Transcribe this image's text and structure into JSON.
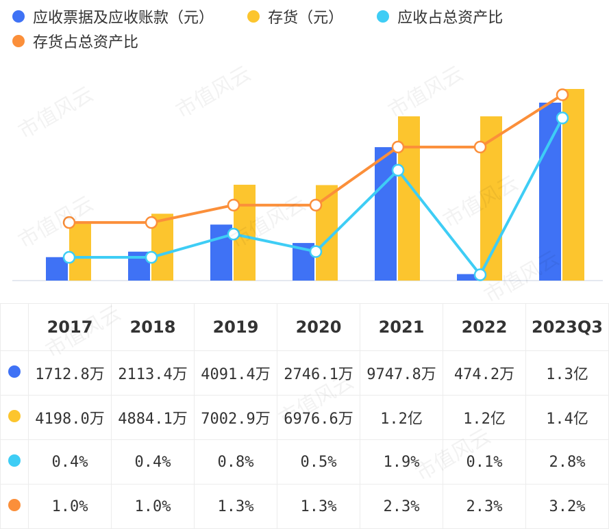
{
  "colors": {
    "receivable": "#3f72f5",
    "inventory": "#fcc52e",
    "receivable_ratio": "#3ecdf5",
    "inventory_ratio": "#fb8f3a"
  },
  "watermark": "市值风云",
  "chart_data": {
    "type": "bar+line",
    "categories": [
      "2017",
      "2018",
      "2019",
      "2020",
      "2021",
      "2022",
      "2023Q3"
    ],
    "series": [
      {
        "name": "应收票据及应收账款（元）",
        "kind": "bar",
        "color": "#3f72f5",
        "values": [
          17128000,
          21134000,
          40914000,
          27461000,
          97478000,
          4742000,
          130000000
        ],
        "labels": [
          "1712.8万",
          "2113.4万",
          "4091.4万",
          "2746.1万",
          "9747.8万",
          "474.2万",
          "1.3亿"
        ]
      },
      {
        "name": "存货（元）",
        "kind": "bar",
        "color": "#fcc52e",
        "values": [
          41980000,
          48841000,
          70029000,
          69766000,
          120000000,
          120000000,
          140000000
        ],
        "labels": [
          "4198.0万",
          "4884.1万",
          "7002.9万",
          "6976.6万",
          "1.2亿",
          "1.2亿",
          "1.4亿"
        ]
      },
      {
        "name": "应收占总资产比",
        "kind": "line",
        "color": "#3ecdf5",
        "values": [
          0.4,
          0.4,
          0.8,
          0.5,
          1.9,
          0.1,
          2.8
        ],
        "labels": [
          "0.4%",
          "0.4%",
          "0.8%",
          "0.5%",
          "1.9%",
          "0.1%",
          "2.8%"
        ]
      },
      {
        "name": "存货占总资产比",
        "kind": "line",
        "color": "#fb8f3a",
        "values": [
          1.0,
          1.0,
          1.3,
          1.3,
          2.3,
          2.3,
          3.2
        ],
        "labels": [
          "1.0%",
          "1.0%",
          "1.3%",
          "1.3%",
          "2.3%",
          "2.3%",
          "3.2%"
        ]
      }
    ],
    "bar_ylim": [
      0,
      140000000
    ],
    "line_ylim": [
      0,
      3.3
    ]
  }
}
